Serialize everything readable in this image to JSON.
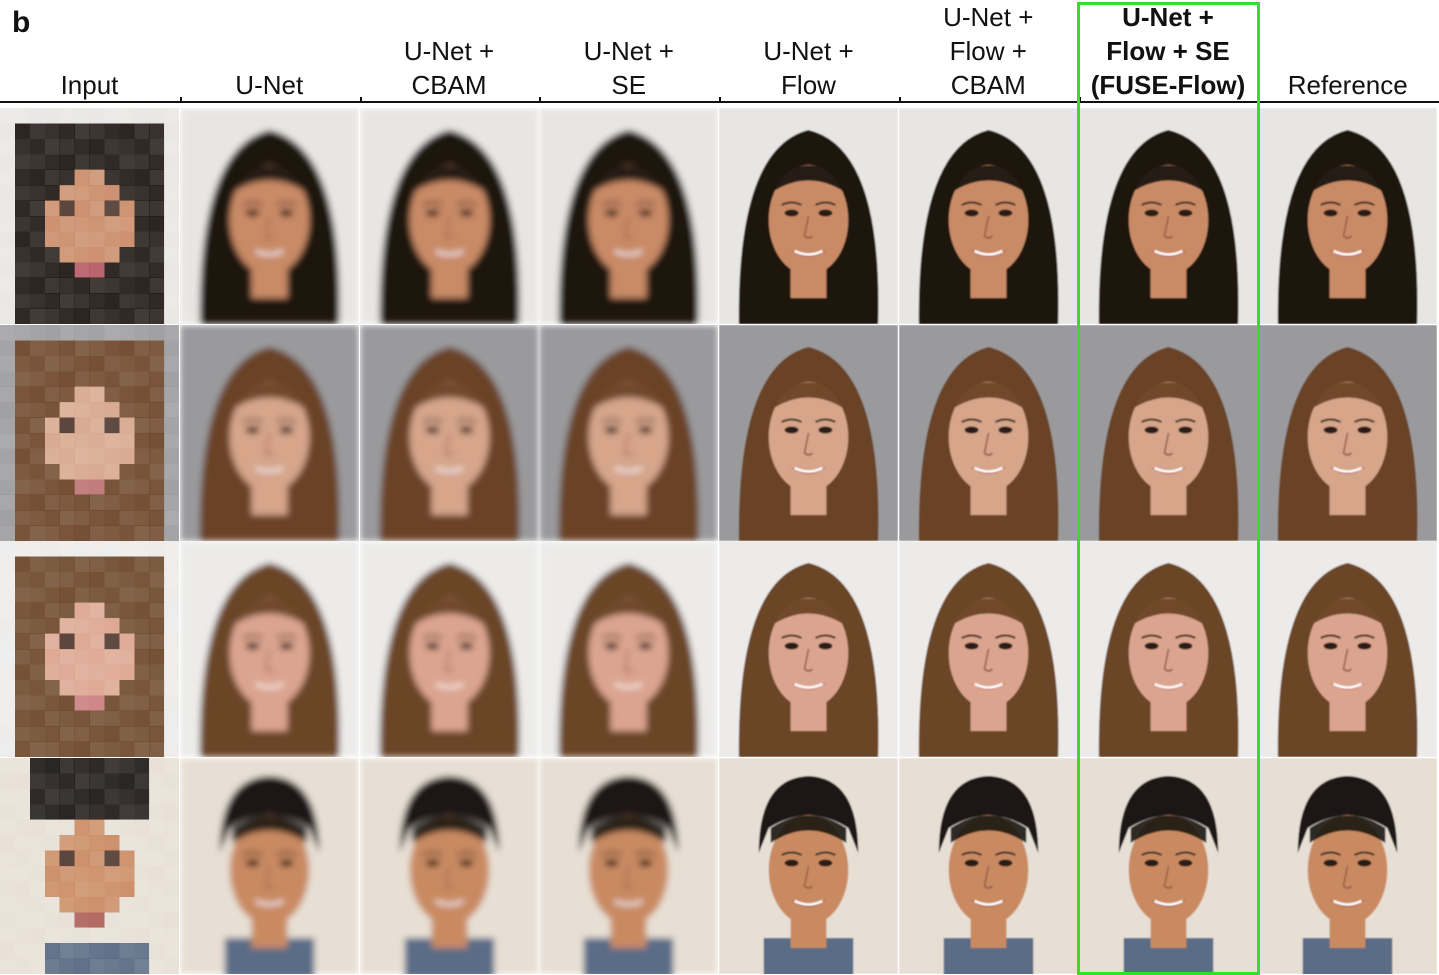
{
  "panel_label": "b",
  "columns": [
    {
      "lines": [
        "Input"
      ],
      "bold": false
    },
    {
      "lines": [
        "U-Net"
      ],
      "bold": false
    },
    {
      "lines": [
        "U-Net +",
        "CBAM"
      ],
      "bold": false
    },
    {
      "lines": [
        "U-Net +",
        "SE"
      ],
      "bold": false
    },
    {
      "lines": [
        "U-Net +",
        "Flow"
      ],
      "bold": false
    },
    {
      "lines": [
        "U-Net +",
        "Flow +",
        "CBAM"
      ],
      "bold": false
    },
    {
      "lines": [
        "U-Net +",
        "Flow + SE",
        "(FUSE-Flow)"
      ],
      "bold": true
    },
    {
      "lines": [
        "Reference"
      ],
      "bold": false
    }
  ],
  "highlight_color": "#2fe02f",
  "rows": [
    {
      "subject": "woman-dark-hair",
      "bg": "#e8e6e3",
      "hair": "#1c1410",
      "skin": "#c98a66",
      "lips": "#b0505a"
    },
    {
      "subject": "woman-brown-hair",
      "bg": "#9a9a9c",
      "hair": "#6b4326",
      "skin": "#d6a58a",
      "lips": "#b86a6a"
    },
    {
      "subject": "woman-long-brown-hair",
      "bg": "#ecebea",
      "hair": "#6a4526",
      "skin": "#dba48e",
      "lips": "#c87878"
    },
    {
      "subject": "man-dark-hair",
      "bg": "#e7dfd4",
      "hair": "#1a1512",
      "skin": "#c98a62",
      "lips": "#a8564e"
    }
  ],
  "style_per_column": [
    "pixelated",
    "blurry",
    "blurry",
    "blurry",
    "sharp",
    "sharp",
    "sharp",
    "sharp"
  ]
}
